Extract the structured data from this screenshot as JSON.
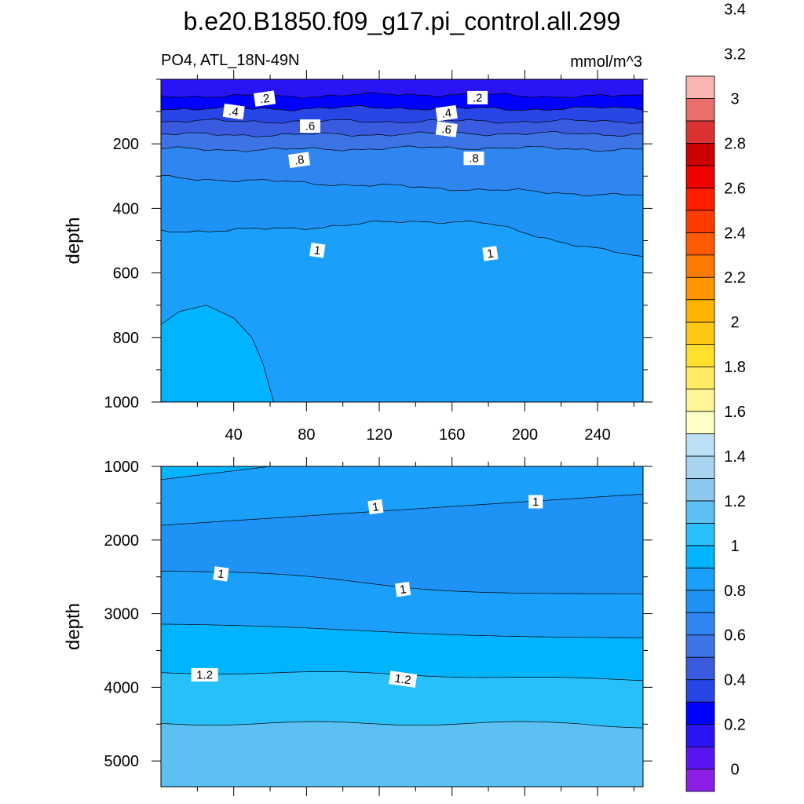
{
  "chart_data": {
    "type": "contour",
    "title": "b.e20.B1850.f09_g17.pi_control.all.299",
    "variable_label": "PO4, ATL_18N-49N",
    "units_label": "mmol/m^3",
    "colorbar": {
      "tick_labels": [
        "0",
        "0.2",
        "0.4",
        "0.6",
        "0.8",
        "1",
        "1.2",
        "1.4",
        "1.6",
        "1.8",
        "2",
        "2.2",
        "2.4",
        "2.6",
        "2.8",
        "3",
        "3.2",
        "3.4"
      ],
      "colors": [
        "#8C1EE6",
        "#5A14F0",
        "#2814F5",
        "#0000FF",
        "#2845E6",
        "#3A5BE0",
        "#3C74E6",
        "#2F86F0",
        "#1E93F5",
        "#1AA0FA",
        "#00B4FF",
        "#28C0FA",
        "#5CC0F2",
        "#8CC8EE",
        "#A8D4F0",
        "#BEE0F4",
        "#FFFFC8",
        "#FFF596",
        "#FFEB64",
        "#FFE02D",
        "#FFC814",
        "#FFB400",
        "#FF9600",
        "#FF7800",
        "#FF5A00",
        "#FF3C00",
        "#FF1E00",
        "#F00000",
        "#CD0000",
        "#DC3232",
        "#EB6E6E",
        "#FAB4B4"
      ]
    },
    "panels": [
      {
        "id": "upper",
        "xlabel": "",
        "ylabel": "depth",
        "xlim": [
          0,
          265
        ],
        "ylim": [
          1000,
          0
        ],
        "x_ticks": [
          "40",
          "80",
          "120",
          "160",
          "200",
          "240"
        ],
        "y_ticks": [
          "200",
          "400",
          "600",
          "800",
          "1000"
        ],
        "contour_labels": [
          {
            "text": ".2",
            "x": 57,
            "y": 60
          },
          {
            "text": ".2",
            "x": 174,
            "y": 57
          },
          {
            "text": ".4",
            "x": 40,
            "y": 100
          },
          {
            "text": ".4",
            "x": 157,
            "y": 105
          },
          {
            "text": ".6",
            "x": 82,
            "y": 145
          },
          {
            "text": ".6",
            "x": 157,
            "y": 155
          },
          {
            "text": ".8",
            "x": 76,
            "y": 250
          },
          {
            "text": ".8",
            "x": 172,
            "y": 245
          },
          {
            "text": "1",
            "x": 86,
            "y": 530
          },
          {
            "text": "1",
            "x": 181,
            "y": 540
          }
        ]
      },
      {
        "id": "lower",
        "xlabel": "",
        "ylabel": "depth",
        "xlim": [
          0,
          265
        ],
        "ylim": [
          5350,
          1000
        ],
        "y_ticks": [
          "1000",
          "2000",
          "3000",
          "4000",
          "5000"
        ],
        "contour_labels": [
          {
            "text": "1",
            "x": 118,
            "y": 1550
          },
          {
            "text": "1",
            "x": 206,
            "y": 1480
          },
          {
            "text": "1",
            "x": 33,
            "y": 2460
          },
          {
            "text": "1",
            "x": 133,
            "y": 2670
          },
          {
            "text": "1.2",
            "x": 24,
            "y": 3830
          },
          {
            "text": "1.2",
            "x": 133,
            "y": 3890
          }
        ]
      }
    ]
  }
}
